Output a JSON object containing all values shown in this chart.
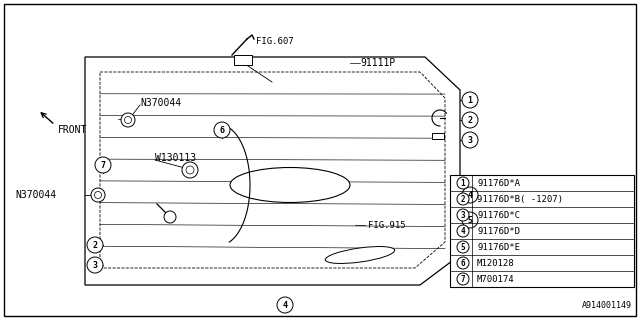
{
  "bg_color": "#ffffff",
  "line_color": "#000000",
  "diagram_label": "A914001149",
  "part_label": "91111P",
  "legend_items": [
    {
      "num": "1",
      "code": "91176D*A"
    },
    {
      "num": "2",
      "code": "91176D*B( -1207)"
    },
    {
      "num": "3",
      "code": "91176D*C"
    },
    {
      "num": "4",
      "code": "91176D*D"
    },
    {
      "num": "5",
      "code": "91176D*E"
    },
    {
      "num": "6",
      "code": "M120128"
    },
    {
      "num": "7",
      "code": "M700174"
    }
  ]
}
